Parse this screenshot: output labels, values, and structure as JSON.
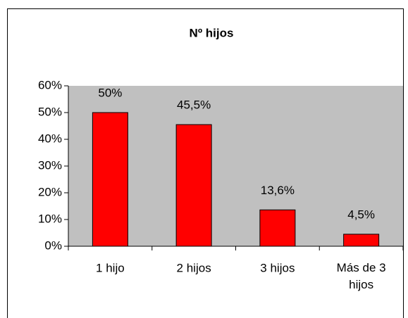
{
  "chart_data": {
    "type": "bar",
    "title": "Nº hijos",
    "categories": [
      "1 hijo",
      "2 hijos",
      "3 hijos",
      "Más de 3 hijos"
    ],
    "values": [
      50,
      45.5,
      13.6,
      4.5
    ],
    "value_labels": [
      "50%",
      "45,5%",
      "13,6%",
      "4,5%"
    ],
    "color": "#ff0000",
    "ylim": [
      0,
      60
    ],
    "yticks": [
      {
        "value": 0,
        "label": "0%"
      },
      {
        "value": 10,
        "label": "10%"
      },
      {
        "value": 20,
        "label": "20%"
      },
      {
        "value": 30,
        "label": "30%"
      },
      {
        "value": 40,
        "label": "40%"
      },
      {
        "value": 50,
        "label": "50%"
      },
      {
        "value": 60,
        "label": "60%"
      }
    ]
  }
}
